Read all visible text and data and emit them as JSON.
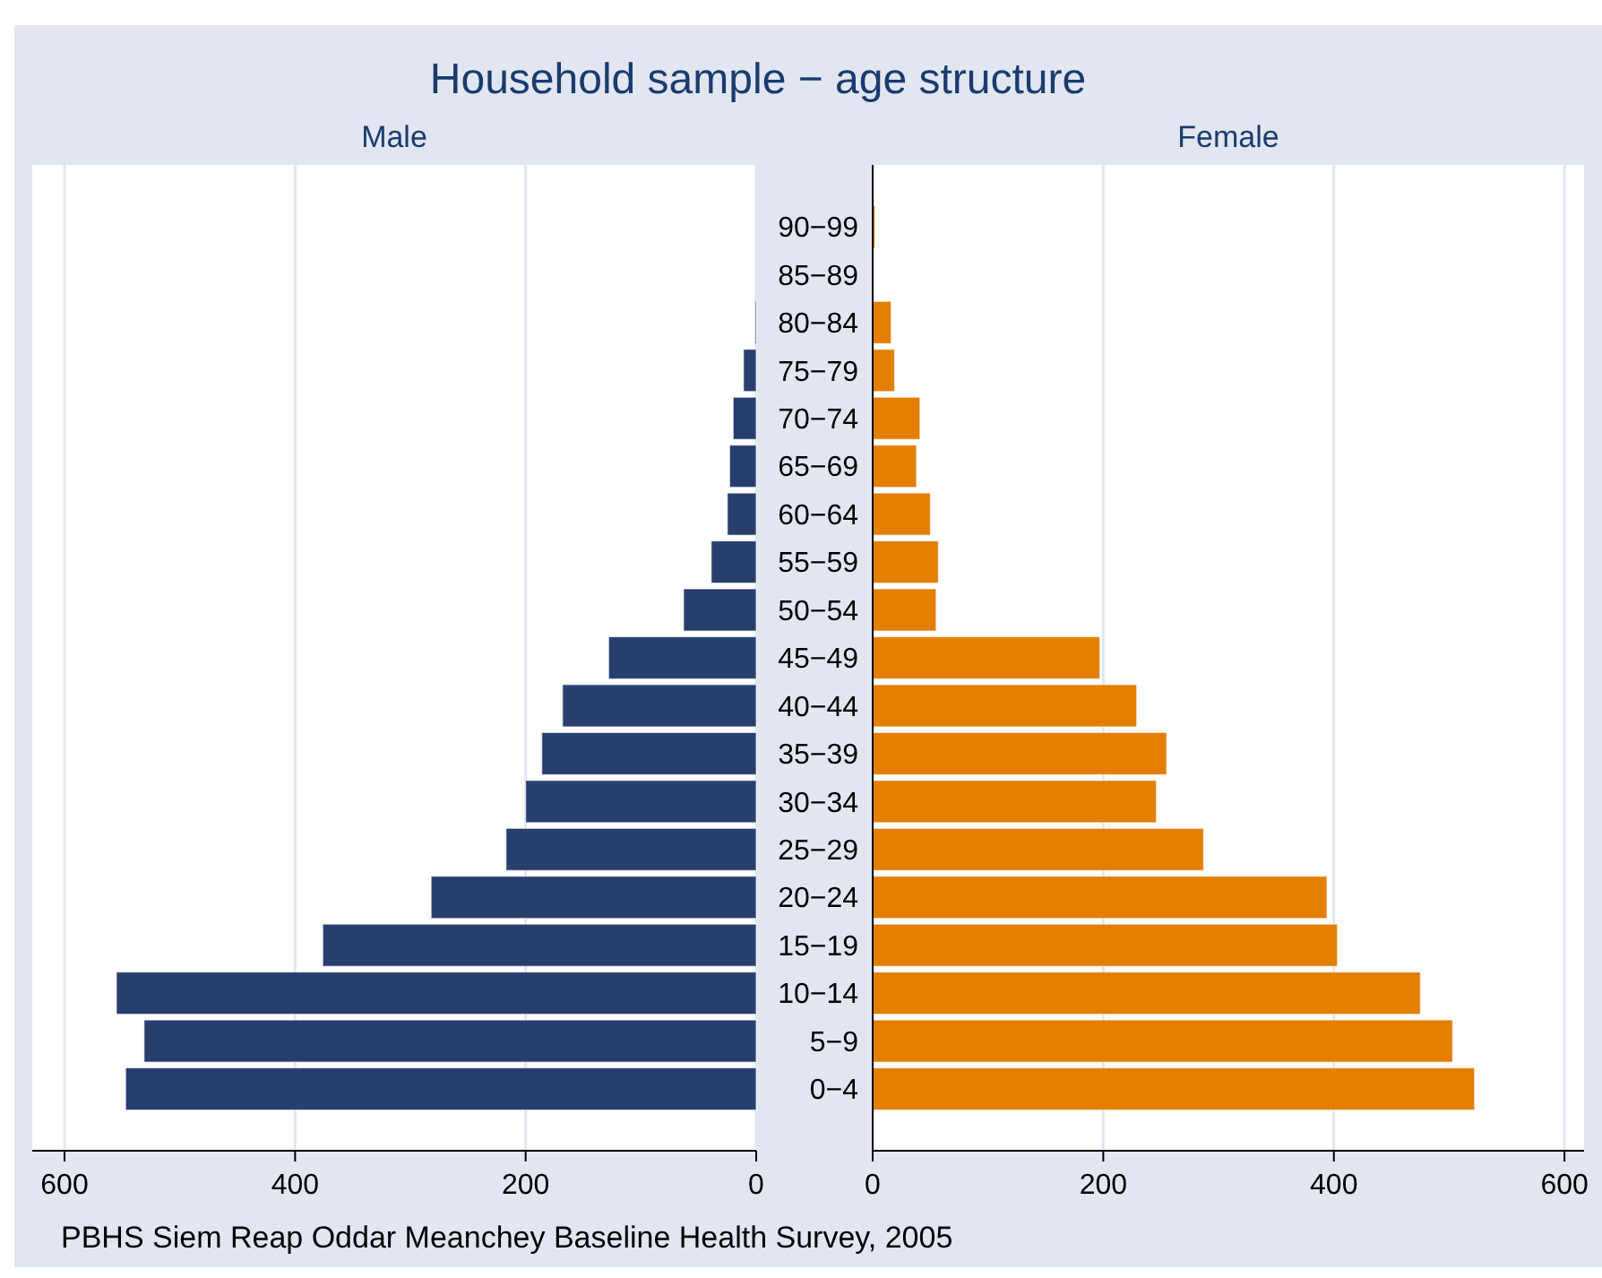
{
  "chart_data": [
    {
      "type": "bar",
      "orientation": "horizontal",
      "title": "Household sample − age structure",
      "subtitle": "Male",
      "categories": [
        "90−99",
        "85−89",
        "80−84",
        "75−79",
        "70−74",
        "65−69",
        "60−64",
        "55−59",
        "50−54",
        "45−49",
        "40−44",
        "35−39",
        "30−34",
        "25−29",
        "20−24",
        "15−19",
        "10−14",
        "5−9",
        "0−4"
      ],
      "values": [
        0,
        0,
        1,
        11,
        20,
        23,
        25,
        39,
        63,
        128,
        168,
        186,
        200,
        217,
        282,
        376,
        555,
        531,
        547
      ],
      "color": "#283f6e",
      "xlim": [
        628,
        0
      ],
      "xticks": [
        600,
        400,
        200,
        0
      ],
      "grid": "x",
      "tick_labels": "x",
      "annotations": [
        "PBHS Siem Reap Oddar Meanchey Baseline Health Survey, 2005"
      ]
    },
    {
      "type": "bar",
      "orientation": "horizontal",
      "subtitle": "Female",
      "categories": [
        "90−99",
        "85−89",
        "80−84",
        "75−79",
        "70−74",
        "65−69",
        "60−64",
        "55−59",
        "50−54",
        "45−49",
        "40−44",
        "35−39",
        "30−34",
        "25−29",
        "20−24",
        "15−19",
        "10−14",
        "5−9",
        "0−4"
      ],
      "values": [
        2,
        0,
        16,
        19,
        41,
        38,
        50,
        57,
        55,
        197,
        229,
        255,
        246,
        287,
        394,
        403,
        475,
        503,
        522
      ],
      "color": "#e37e00",
      "xlim": [
        0,
        617
      ],
      "xticks": [
        0,
        200,
        400,
        600
      ],
      "grid": "x"
    }
  ]
}
